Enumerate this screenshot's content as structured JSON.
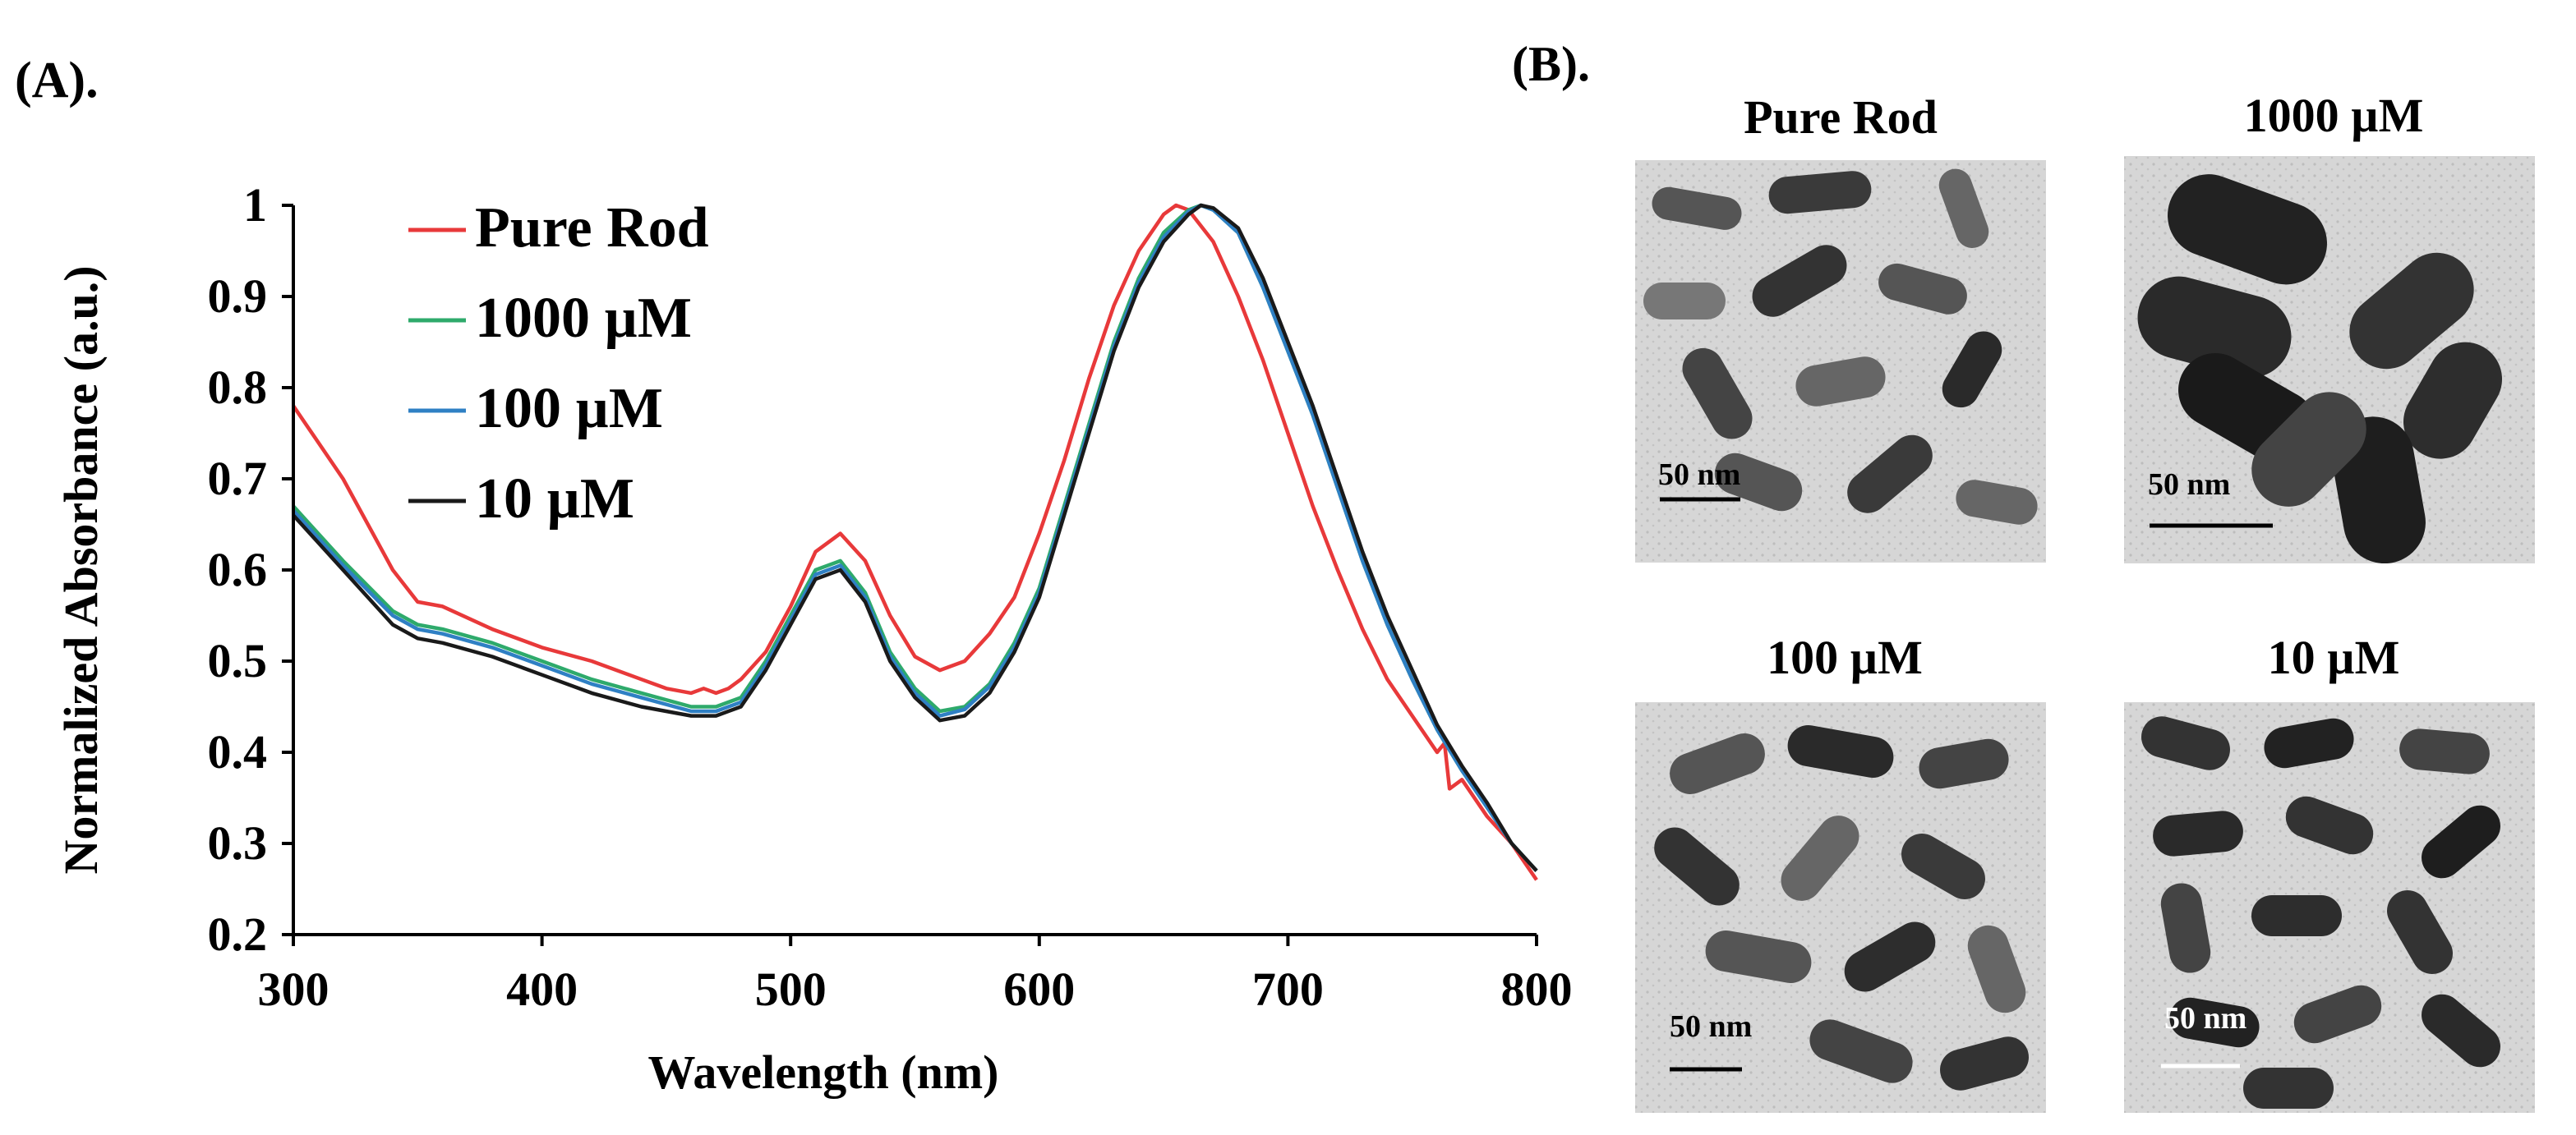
{
  "chart_data": {
    "type": "line",
    "panel_label": "(A).",
    "xlabel": "Wavelength (nm)",
    "ylabel": "Normalized Absorbance (a.u.)",
    "xlim": [
      300,
      800
    ],
    "ylim": [
      0.2,
      1.0
    ],
    "xticks": [
      300,
      400,
      500,
      600,
      700,
      800
    ],
    "yticks": [
      0.2,
      0.3,
      0.4,
      0.5,
      0.6,
      0.7,
      0.8,
      0.9,
      1
    ],
    "ytick_labels": [
      "0.2",
      "0.3",
      "0.4",
      "0.5",
      "0.6",
      "0.7",
      "0.8",
      "0.9",
      "1"
    ],
    "legend_position": "top-left",
    "series": [
      {
        "name": "Pure Rod",
        "color": "#e8393a",
        "x": [
          300,
          320,
          340,
          350,
          360,
          380,
          400,
          420,
          440,
          450,
          460,
          465,
          470,
          475,
          480,
          490,
          500,
          510,
          520,
          530,
          540,
          550,
          560,
          570,
          580,
          590,
          600,
          610,
          620,
          630,
          640,
          650,
          655,
          660,
          670,
          680,
          690,
          700,
          710,
          720,
          730,
          740,
          750,
          760,
          763,
          765,
          770,
          780,
          790,
          800
        ],
        "y": [
          0.78,
          0.7,
          0.6,
          0.565,
          0.56,
          0.535,
          0.515,
          0.5,
          0.48,
          0.47,
          0.465,
          0.47,
          0.465,
          0.47,
          0.48,
          0.51,
          0.56,
          0.62,
          0.64,
          0.61,
          0.55,
          0.505,
          0.49,
          0.5,
          0.53,
          0.57,
          0.64,
          0.72,
          0.81,
          0.89,
          0.95,
          0.99,
          1.0,
          0.995,
          0.96,
          0.9,
          0.83,
          0.75,
          0.67,
          0.6,
          0.535,
          0.48,
          0.44,
          0.4,
          0.41,
          0.36,
          0.37,
          0.33,
          0.3,
          0.26
        ]
      },
      {
        "name": "1000 µM",
        "color": "#2eaa6b",
        "x": [
          300,
          320,
          340,
          350,
          360,
          380,
          400,
          420,
          440,
          460,
          470,
          480,
          490,
          500,
          510,
          520,
          530,
          540,
          550,
          560,
          570,
          580,
          590,
          600,
          610,
          620,
          630,
          640,
          650,
          660,
          665,
          670,
          680,
          690,
          700,
          710,
          720,
          730,
          740,
          750,
          760,
          770,
          780,
          790,
          800
        ],
        "y": [
          0.67,
          0.61,
          0.555,
          0.54,
          0.535,
          0.52,
          0.5,
          0.48,
          0.465,
          0.45,
          0.45,
          0.46,
          0.5,
          0.55,
          0.6,
          0.61,
          0.575,
          0.51,
          0.47,
          0.445,
          0.45,
          0.475,
          0.52,
          0.58,
          0.67,
          0.76,
          0.85,
          0.92,
          0.97,
          0.995,
          1.0,
          0.995,
          0.97,
          0.91,
          0.84,
          0.77,
          0.69,
          0.61,
          0.54,
          0.48,
          0.425,
          0.38,
          0.34,
          0.3,
          0.27
        ]
      },
      {
        "name": "100 µM",
        "color": "#2f80c4",
        "x": [
          300,
          320,
          340,
          350,
          360,
          380,
          400,
          420,
          440,
          460,
          470,
          480,
          490,
          500,
          510,
          520,
          530,
          540,
          550,
          560,
          570,
          580,
          590,
          600,
          610,
          620,
          630,
          640,
          650,
          660,
          665,
          670,
          680,
          690,
          700,
          710,
          720,
          730,
          740,
          750,
          760,
          770,
          780,
          790,
          800
        ],
        "y": [
          0.665,
          0.605,
          0.55,
          0.535,
          0.53,
          0.515,
          0.495,
          0.475,
          0.46,
          0.445,
          0.445,
          0.455,
          0.495,
          0.545,
          0.595,
          0.605,
          0.57,
          0.505,
          0.465,
          0.44,
          0.447,
          0.472,
          0.515,
          0.575,
          0.665,
          0.755,
          0.845,
          0.915,
          0.965,
          0.993,
          1.0,
          0.995,
          0.97,
          0.91,
          0.84,
          0.77,
          0.69,
          0.61,
          0.54,
          0.48,
          0.425,
          0.38,
          0.34,
          0.3,
          0.27
        ]
      },
      {
        "name": "10 µM",
        "color": "#1a1a1a",
        "x": [
          300,
          320,
          340,
          350,
          360,
          380,
          400,
          420,
          440,
          460,
          470,
          480,
          490,
          500,
          510,
          520,
          530,
          540,
          550,
          560,
          570,
          580,
          590,
          600,
          610,
          620,
          630,
          640,
          650,
          660,
          665,
          670,
          680,
          690,
          700,
          710,
          720,
          730,
          740,
          750,
          760,
          770,
          780,
          790,
          800
        ],
        "y": [
          0.66,
          0.6,
          0.54,
          0.525,
          0.52,
          0.505,
          0.485,
          0.465,
          0.45,
          0.44,
          0.44,
          0.45,
          0.49,
          0.54,
          0.59,
          0.6,
          0.565,
          0.5,
          0.46,
          0.435,
          0.44,
          0.465,
          0.51,
          0.57,
          0.66,
          0.75,
          0.84,
          0.91,
          0.96,
          0.99,
          1.0,
          0.997,
          0.975,
          0.92,
          0.85,
          0.78,
          0.7,
          0.62,
          0.55,
          0.49,
          0.43,
          0.385,
          0.345,
          0.3,
          0.27
        ]
      }
    ]
  },
  "tem_panel": {
    "panel_label": "(B).",
    "images": [
      {
        "title": "Pure Rod",
        "scale_label": "50 nm"
      },
      {
        "title": "1000 µM",
        "scale_label": "50 nm"
      },
      {
        "title": "100 µM",
        "scale_label": "50 nm"
      },
      {
        "title": "10 µM",
        "scale_label": "50 nm"
      }
    ]
  }
}
